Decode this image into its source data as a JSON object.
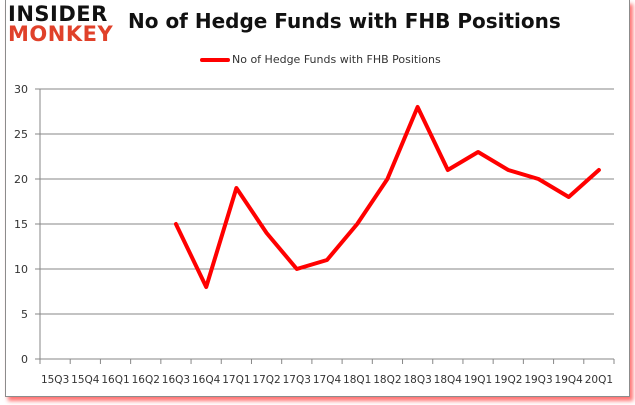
{
  "brand": {
    "line1": "INSIDER",
    "line2": "MONKEY"
  },
  "chart_data": {
    "type": "line",
    "title": "No of Hedge Funds with FHB Positions",
    "xlabel": "",
    "ylabel": "",
    "categories": [
      "15Q3",
      "15Q4",
      "16Q1",
      "16Q2",
      "16Q3",
      "16Q4",
      "17Q1",
      "17Q2",
      "17Q3",
      "17Q4",
      "18Q1",
      "18Q2",
      "18Q3",
      "18Q4",
      "19Q1",
      "19Q2",
      "19Q3",
      "19Q4",
      "20Q1"
    ],
    "series": [
      {
        "name": "No of Hedge Funds with FHB Positions",
        "color": "#ff0000",
        "values": [
          null,
          null,
          null,
          null,
          15,
          8,
          19,
          14,
          10,
          11,
          15,
          20,
          28,
          21,
          23,
          21,
          20,
          18,
          21
        ]
      }
    ],
    "ylim": [
      0,
      30
    ],
    "yticks": [
      0,
      5,
      10,
      15,
      20,
      25,
      30
    ],
    "grid": true,
    "legend_position": "top"
  }
}
